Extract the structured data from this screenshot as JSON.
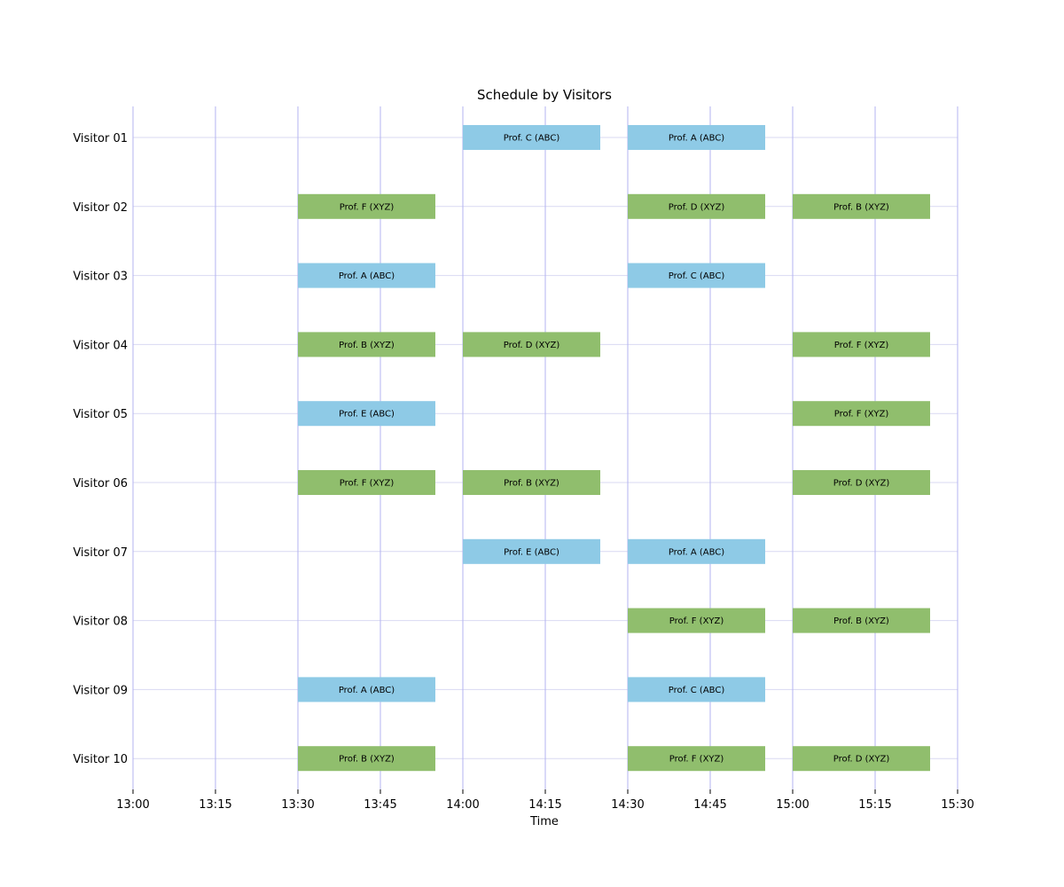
{
  "chart_data": {
    "type": "bar",
    "orientation": "horizontal",
    "title": "Schedule by Visitors",
    "xlabel": "Time",
    "ylabel": "",
    "x_ticks": [
      "13:00",
      "13:15",
      "13:30",
      "13:45",
      "14:00",
      "14:15",
      "14:30",
      "14:45",
      "15:00",
      "15:15",
      "15:30"
    ],
    "xlim": [
      "13:00",
      "15:30"
    ],
    "categories": [
      "Visitor 01",
      "Visitor 02",
      "Visitor 03",
      "Visitor 04",
      "Visitor 05",
      "Visitor 06",
      "Visitor 07",
      "Visitor 08",
      "Visitor 09",
      "Visitor 10"
    ],
    "grid": true,
    "colors": {
      "ABC": "#8ecae6",
      "XYZ": "#90be6d",
      "vgrid": "#b3b3f0",
      "hgrid": "#d9d9f2"
    },
    "meetings": [
      {
        "visitor": "Visitor 01",
        "start": "14:00",
        "end": "14:25",
        "label": "Prof. C (ABC)",
        "group": "ABC"
      },
      {
        "visitor": "Visitor 01",
        "start": "14:30",
        "end": "14:55",
        "label": "Prof. A (ABC)",
        "group": "ABC"
      },
      {
        "visitor": "Visitor 02",
        "start": "13:30",
        "end": "13:55",
        "label": "Prof. F (XYZ)",
        "group": "XYZ"
      },
      {
        "visitor": "Visitor 02",
        "start": "14:30",
        "end": "14:55",
        "label": "Prof. D (XYZ)",
        "group": "XYZ"
      },
      {
        "visitor": "Visitor 02",
        "start": "15:00",
        "end": "15:25",
        "label": "Prof. B (XYZ)",
        "group": "XYZ"
      },
      {
        "visitor": "Visitor 03",
        "start": "13:30",
        "end": "13:55",
        "label": "Prof. A (ABC)",
        "group": "ABC"
      },
      {
        "visitor": "Visitor 03",
        "start": "14:30",
        "end": "14:55",
        "label": "Prof. C (ABC)",
        "group": "ABC"
      },
      {
        "visitor": "Visitor 04",
        "start": "13:30",
        "end": "13:55",
        "label": "Prof. B (XYZ)",
        "group": "XYZ"
      },
      {
        "visitor": "Visitor 04",
        "start": "14:00",
        "end": "14:25",
        "label": "Prof. D (XYZ)",
        "group": "XYZ"
      },
      {
        "visitor": "Visitor 04",
        "start": "15:00",
        "end": "15:25",
        "label": "Prof. F (XYZ)",
        "group": "XYZ"
      },
      {
        "visitor": "Visitor 05",
        "start": "13:30",
        "end": "13:55",
        "label": "Prof. E (ABC)",
        "group": "ABC"
      },
      {
        "visitor": "Visitor 05",
        "start": "15:00",
        "end": "15:25",
        "label": "Prof. F (XYZ)",
        "group": "XYZ"
      },
      {
        "visitor": "Visitor 06",
        "start": "13:30",
        "end": "13:55",
        "label": "Prof. F (XYZ)",
        "group": "XYZ"
      },
      {
        "visitor": "Visitor 06",
        "start": "14:00",
        "end": "14:25",
        "label": "Prof. B (XYZ)",
        "group": "XYZ"
      },
      {
        "visitor": "Visitor 06",
        "start": "15:00",
        "end": "15:25",
        "label": "Prof. D (XYZ)",
        "group": "XYZ"
      },
      {
        "visitor": "Visitor 07",
        "start": "14:00",
        "end": "14:25",
        "label": "Prof. E (ABC)",
        "group": "ABC"
      },
      {
        "visitor": "Visitor 07",
        "start": "14:30",
        "end": "14:55",
        "label": "Prof. A (ABC)",
        "group": "ABC"
      },
      {
        "visitor": "Visitor 08",
        "start": "14:30",
        "end": "14:55",
        "label": "Prof. F (XYZ)",
        "group": "XYZ"
      },
      {
        "visitor": "Visitor 08",
        "start": "15:00",
        "end": "15:25",
        "label": "Prof. B (XYZ)",
        "group": "XYZ"
      },
      {
        "visitor": "Visitor 09",
        "start": "13:30",
        "end": "13:55",
        "label": "Prof. A (ABC)",
        "group": "ABC"
      },
      {
        "visitor": "Visitor 09",
        "start": "14:30",
        "end": "14:55",
        "label": "Prof. C (ABC)",
        "group": "ABC"
      },
      {
        "visitor": "Visitor 10",
        "start": "13:30",
        "end": "13:55",
        "label": "Prof. B (XYZ)",
        "group": "XYZ"
      },
      {
        "visitor": "Visitor 10",
        "start": "14:30",
        "end": "14:55",
        "label": "Prof. F (XYZ)",
        "group": "XYZ"
      },
      {
        "visitor": "Visitor 10",
        "start": "15:00",
        "end": "15:25",
        "label": "Prof. D (XYZ)",
        "group": "XYZ"
      }
    ]
  }
}
